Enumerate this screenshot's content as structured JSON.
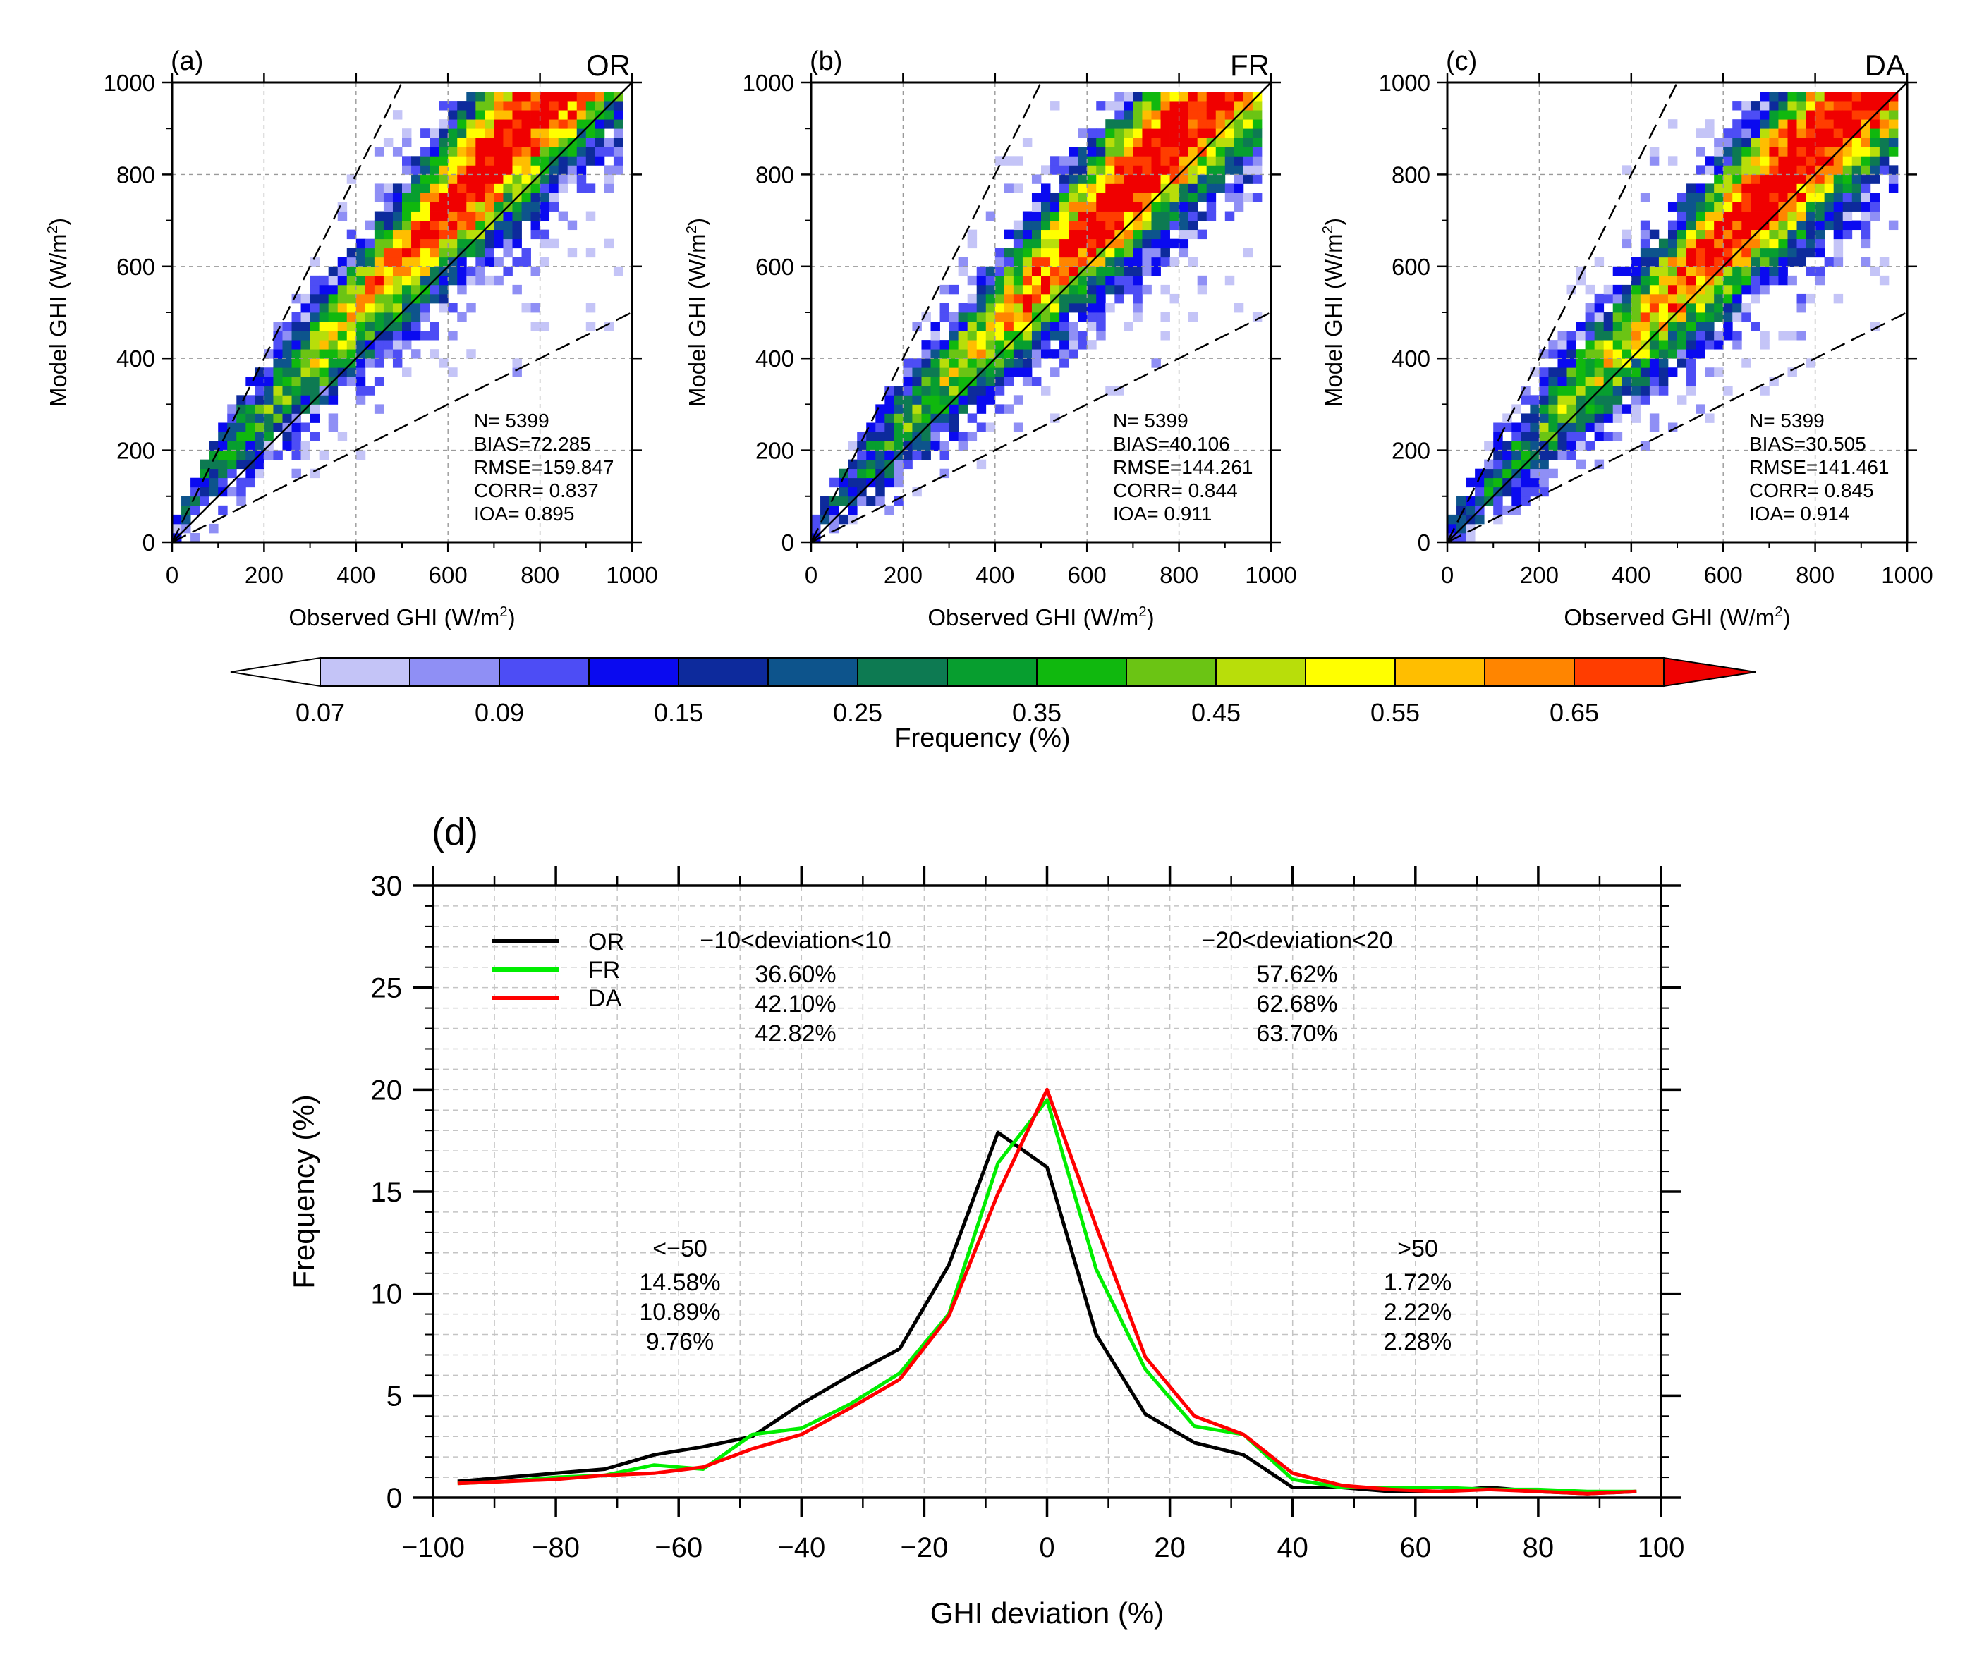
{
  "figure": {
    "colorbar": {
      "title": "Frequency (%)",
      "tick_labels": [
        "0.07",
        "0.09",
        "0.15",
        "0.25",
        "0.35",
        "0.45",
        "0.55",
        "0.65"
      ],
      "colors": [
        "#ffffff",
        "#c4c4f7",
        "#8f8ff5",
        "#4d4df5",
        "#0a0af0",
        "#0d2a9c",
        "#0d548c",
        "#0d7a52",
        "#079e2f",
        "#10b80e",
        "#6bc414",
        "#b8de0a",
        "#ffff00",
        "#ffbe00",
        "#ff8500",
        "#ff3d00",
        "#f00000"
      ]
    }
  },
  "chart_data": [
    {
      "panel": "(a)",
      "name": "OR",
      "type": "heatmap",
      "xlabel": "Observed GHI (W/m²)",
      "ylabel": "Model GHI (W/m²)",
      "xlim": [
        0,
        1000
      ],
      "ylim": [
        0,
        1000
      ],
      "xticks": [
        "0",
        "200",
        "400",
        "600",
        "800",
        "1000"
      ],
      "yticks": [
        "0",
        "200",
        "400",
        "600",
        "800",
        "1000"
      ],
      "reference_lines": [
        "y = x",
        "y = 2x",
        "y = 0.5x"
      ],
      "stats": [
        "N=  5399",
        "BIAS=72.285",
        "RMSE=159.847",
        "CORR= 0.837",
        "IOA= 0.895"
      ]
    },
    {
      "panel": "(b)",
      "name": "FR",
      "type": "heatmap",
      "xlabel": "Observed GHI (W/m²)",
      "ylabel": "Model GHI (W/m²)",
      "xlim": [
        0,
        1000
      ],
      "ylim": [
        0,
        1000
      ],
      "xticks": [
        "0",
        "200",
        "400",
        "600",
        "800",
        "1000"
      ],
      "yticks": [
        "0",
        "200",
        "400",
        "600",
        "800",
        "1000"
      ],
      "reference_lines": [
        "y = x",
        "y = 2x",
        "y = 0.5x"
      ],
      "stats": [
        "N=  5399",
        "BIAS=40.106",
        "RMSE=144.261",
        "CORR= 0.844",
        "IOA= 0.911"
      ]
    },
    {
      "panel": "(c)",
      "name": "DA",
      "type": "heatmap",
      "xlabel": "Observed GHI (W/m²)",
      "ylabel": "Model GHI (W/m²)",
      "xlim": [
        0,
        1000
      ],
      "ylim": [
        0,
        1000
      ],
      "xticks": [
        "0",
        "200",
        "400",
        "600",
        "800",
        "1000"
      ],
      "yticks": [
        "0",
        "200",
        "400",
        "600",
        "800",
        "1000"
      ],
      "reference_lines": [
        "y = x",
        "y = 2x",
        "y = 0.5x"
      ],
      "stats": [
        "N=  5399",
        "BIAS=30.505",
        "RMSE=141.461",
        "CORR= 0.845",
        "IOA= 0.914"
      ]
    },
    {
      "panel": "(d)",
      "type": "line",
      "xlabel": "GHI deviation (%)",
      "ylabel": "Frequency (%)",
      "xlim": [
        -100,
        100
      ],
      "ylim": [
        0,
        30
      ],
      "xticks": [
        "−100",
        "−80",
        "−60",
        "−40",
        "−20",
        "0",
        "20",
        "40",
        "60",
        "80",
        "100"
      ],
      "yticks": [
        "0",
        "5",
        "10",
        "15",
        "20",
        "25",
        "30"
      ],
      "grid": true,
      "legend_position": "top-left",
      "x": [
        -96,
        -88,
        -80,
        -72,
        -64,
        -56,
        -48,
        -40,
        -32,
        -24,
        -16,
        -8,
        0,
        8,
        16,
        24,
        32,
        40,
        48,
        56,
        64,
        72,
        80,
        88,
        96
      ],
      "series": [
        {
          "name": "OR",
          "color": "#000000",
          "values": [
            0.8,
            1.0,
            1.2,
            1.4,
            2.1,
            2.5,
            3.0,
            4.6,
            6.0,
            7.3,
            11.4,
            17.9,
            16.2,
            8.0,
            4.1,
            2.7,
            2.1,
            0.5,
            0.5,
            0.3,
            0.3,
            0.5,
            0.3,
            0.2,
            0.3
          ]
        },
        {
          "name": "FR",
          "color": "#00ee00",
          "values": [
            0.7,
            0.8,
            1.0,
            1.1,
            1.6,
            1.4,
            3.1,
            3.4,
            4.6,
            6.1,
            9.0,
            16.4,
            19.5,
            11.2,
            6.3,
            3.5,
            3.1,
            0.9,
            0.5,
            0.5,
            0.5,
            0.4,
            0.4,
            0.3,
            0.3
          ]
        },
        {
          "name": "DA",
          "color": "#ff0000",
          "values": [
            0.7,
            0.8,
            0.9,
            1.1,
            1.2,
            1.5,
            2.4,
            3.1,
            4.4,
            5.8,
            8.9,
            14.9,
            20.0,
            13.3,
            6.9,
            4.0,
            3.1,
            1.2,
            0.6,
            0.4,
            0.3,
            0.4,
            0.3,
            0.2,
            0.3
          ]
        }
      ],
      "annotations": [
        {
          "header": "−10<deviation<10",
          "values": [
            "36.60%",
            "42.10%",
            "42.82%"
          ]
        },
        {
          "header": "−20<deviation<20",
          "values": [
            "57.62%",
            "62.68%",
            "63.70%"
          ]
        },
        {
          "header": "<−50",
          "values": [
            "14.58%",
            "10.89%",
            "9.76%"
          ]
        },
        {
          "header": ">50",
          "values": [
            "1.72%",
            "2.22%",
            "2.28%"
          ]
        }
      ]
    }
  ]
}
